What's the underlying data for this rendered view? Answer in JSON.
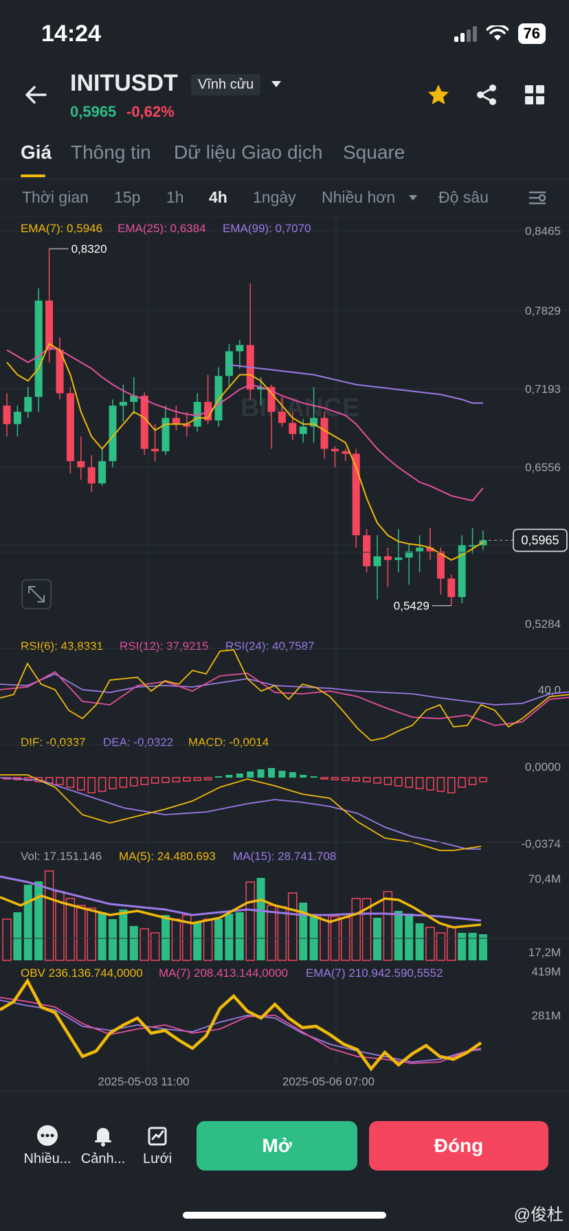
{
  "status_bar": {
    "time": "14:24",
    "battery": "76"
  },
  "header": {
    "symbol": "INITUSDT",
    "contract_type": "Vĩnh cửu",
    "last_price": "0,5965",
    "change_percent": "-0,62%",
    "up_color": "#2ebd85",
    "down_color": "#f6465d",
    "accent_color": "#f0b90b"
  },
  "tabs": [
    "Giá",
    "Thông tin",
    "Dữ liệu Giao dịch",
    "Square"
  ],
  "intervals": [
    "Thời gian",
    "15p",
    "1h",
    "4h",
    "1ngày",
    "Nhiều hơn",
    "Độ sâu"
  ],
  "icons": {
    "back": "arrow-left-icon",
    "dropdown": "caret-down-icon",
    "favorite": "star-icon",
    "share": "share-icon",
    "layout": "grid-icon",
    "settings": "chart-settings-icon",
    "expand": "expand-icon",
    "more": "more-icon",
    "alert": "bell-icon",
    "grid_bot": "grid-bot-icon"
  },
  "chart_data": {
    "type": "candlestick",
    "price_axis_ticks": [
      "0,8465",
      "0,7829",
      "0,7193",
      "0,6556",
      "0,5284"
    ],
    "price_range": [
      0.5284,
      0.8465
    ],
    "current_price_tag": "0,5965",
    "high_annotation": "0,8320",
    "low_annotation": "0,5429",
    "time_labels": [
      "2025-05-03 11:00",
      "2025-05-06 07:00"
    ],
    "watermark": "BINANCE",
    "ema_legend": {
      "ema7": "EMA(7): 0,5946",
      "ema25": "EMA(25): 0,6384",
      "ema99": "EMA(99): 0,7070"
    },
    "candles": [
      [
        0.705,
        0.715,
        0.68,
        0.69
      ],
      [
        0.69,
        0.705,
        0.68,
        0.7
      ],
      [
        0.7,
        0.72,
        0.695,
        0.712
      ],
      [
        0.712,
        0.8,
        0.7,
        0.79
      ],
      [
        0.79,
        0.832,
        0.74,
        0.75
      ],
      [
        0.75,
        0.76,
        0.71,
        0.715
      ],
      [
        0.715,
        0.72,
        0.65,
        0.66
      ],
      [
        0.66,
        0.68,
        0.645,
        0.655
      ],
      [
        0.655,
        0.665,
        0.635,
        0.642
      ],
      [
        0.642,
        0.67,
        0.64,
        0.66
      ],
      [
        0.66,
        0.71,
        0.655,
        0.705
      ],
      [
        0.705,
        0.722,
        0.692,
        0.708
      ],
      [
        0.708,
        0.728,
        0.698,
        0.713
      ],
      [
        0.713,
        0.716,
        0.665,
        0.67
      ],
      [
        0.67,
        0.69,
        0.66,
        0.668
      ],
      [
        0.668,
        0.705,
        0.665,
        0.695
      ],
      [
        0.695,
        0.705,
        0.685,
        0.69
      ],
      [
        0.69,
        0.7,
        0.68,
        0.688
      ],
      [
        0.688,
        0.715,
        0.684,
        0.708
      ],
      [
        0.708,
        0.73,
        0.69,
        0.693
      ],
      [
        0.693,
        0.736,
        0.688,
        0.729
      ],
      [
        0.729,
        0.755,
        0.72,
        0.749
      ],
      [
        0.749,
        0.758,
        0.735,
        0.754
      ],
      [
        0.754,
        0.804,
        0.71,
        0.718
      ],
      [
        0.718,
        0.728,
        0.705,
        0.72
      ],
      [
        0.72,
        0.722,
        0.67,
        0.7
      ],
      [
        0.7,
        0.712,
        0.688,
        0.691
      ],
      [
        0.691,
        0.7,
        0.677,
        0.682
      ],
      [
        0.682,
        0.694,
        0.675,
        0.688
      ],
      [
        0.688,
        0.72,
        0.675,
        0.695
      ],
      [
        0.695,
        0.7,
        0.662,
        0.67
      ],
      [
        0.67,
        0.672,
        0.655,
        0.668
      ],
      [
        0.668,
        0.67,
        0.66,
        0.666
      ],
      [
        0.666,
        0.67,
        0.59,
        0.6
      ],
      [
        0.6,
        0.605,
        0.57,
        0.575
      ],
      [
        0.575,
        0.6,
        0.548,
        0.583
      ],
      [
        0.583,
        0.59,
        0.558,
        0.58
      ],
      [
        0.58,
        0.605,
        0.57,
        0.582
      ],
      [
        0.582,
        0.593,
        0.56,
        0.587
      ],
      [
        0.587,
        0.6,
        0.57,
        0.59
      ],
      [
        0.59,
        0.606,
        0.58,
        0.587
      ],
      [
        0.587,
        0.59,
        0.552,
        0.565
      ],
      [
        0.565,
        0.568,
        0.543,
        0.55
      ],
      [
        0.55,
        0.6,
        0.545,
        0.592
      ],
      [
        0.592,
        0.606,
        0.585,
        0.592
      ],
      [
        0.592,
        0.604,
        0.588,
        0.596
      ]
    ],
    "ema7": [
      0.74,
      0.73,
      0.725,
      0.735,
      0.755,
      0.75,
      0.73,
      0.7,
      0.68,
      0.67,
      0.68,
      0.69,
      0.7,
      0.695,
      0.685,
      0.69,
      0.69,
      0.69,
      0.695,
      0.695,
      0.71,
      0.72,
      0.73,
      0.73,
      0.725,
      0.715,
      0.705,
      0.695,
      0.69,
      0.69,
      0.685,
      0.68,
      0.675,
      0.655,
      0.63,
      0.61,
      0.6,
      0.595,
      0.593,
      0.592,
      0.59,
      0.585,
      0.58,
      0.584,
      0.589,
      0.5946
    ],
    "ema25": [
      0.75,
      0.745,
      0.74,
      0.745,
      0.752,
      0.75,
      0.745,
      0.74,
      0.735,
      0.728,
      0.722,
      0.717,
      0.713,
      0.71,
      0.706,
      0.703,
      0.7,
      0.698,
      0.697,
      0.7,
      0.706,
      0.712,
      0.718,
      0.722,
      0.72,
      0.717,
      0.713,
      0.71,
      0.707,
      0.705,
      0.703,
      0.7,
      0.697,
      0.69,
      0.68,
      0.67,
      0.662,
      0.655,
      0.649,
      0.643,
      0.64,
      0.636,
      0.632,
      0.63,
      0.628,
      0.6384
    ],
    "ema99": [
      0.738,
      0.737,
      0.736,
      0.735,
      0.734,
      0.733,
      0.732,
      0.731,
      0.73,
      0.728,
      0.726,
      0.724,
      0.722,
      0.721,
      0.72,
      0.719,
      0.718,
      0.717,
      0.716,
      0.715,
      0.714,
      0.712,
      0.71,
      0.707,
      0.707
    ],
    "rsi_legend": {
      "rsi6": "RSI(6): 43,8331",
      "rsi12": "RSI(12): 37,9215",
      "rsi24": "RSI(24): 40,7587"
    },
    "rsi_tick": "40,0",
    "macd_legend": {
      "dif": "DIF: -0,0337",
      "dea": "DEA: -0,0322",
      "macd": "MACD: -0,0014"
    },
    "macd_ticks": [
      "0,0000",
      "-0,0374"
    ],
    "vol_legend": {
      "vol": "Vol: 17.151.146",
      "ma5": "MA(5): 24.480.693",
      "ma15": "MA(15): 28.741.708"
    },
    "vol_ticks": [
      "70,4M",
      "17,2M"
    ],
    "obv_legend": {
      "obv": "OBV 236.136.744,0000",
      "ma7": "MA(7) 208.413.144,0000",
      "ema7": "EMA(7) 210.942.590,5552"
    },
    "obv_ticks": [
      "419M",
      "281M"
    ]
  },
  "bottom_bar": {
    "more": "Nhiều...",
    "alerts": "Cảnh...",
    "grid": "Lưới",
    "open": "Mở",
    "close": "Đóng",
    "watermark": "@俊杜"
  }
}
